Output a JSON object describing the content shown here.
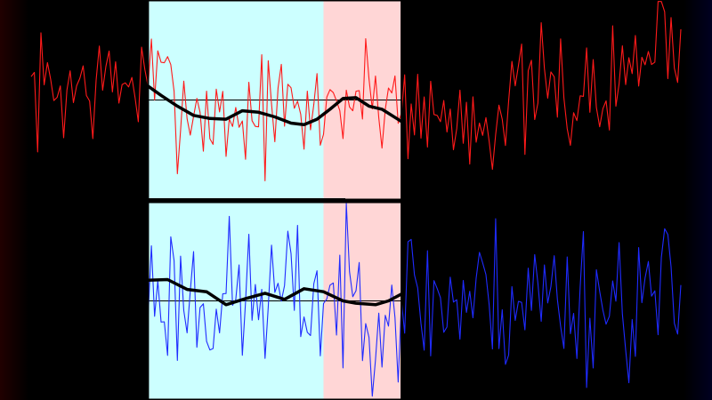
{
  "colors": {
    "background": "#000000",
    "top_series": "#ff1a1a",
    "bottom_series": "#1f2bff",
    "smooth": "#000000",
    "baseline": "#000000",
    "band_cyan": "#ccffff",
    "band_pink": "#ffd6d6",
    "panel_border": "#000000"
  },
  "chart_data": [
    {
      "type": "line",
      "panel": "top",
      "xlim": [
        0,
        200
      ],
      "ylim": [
        -1.3,
        1.3
      ],
      "baseline": 0,
      "highlight_bands": [
        {
          "x0": 36,
          "x1": 90,
          "color": "cyan"
        },
        {
          "x0": 90,
          "x1": 114,
          "color": "pink"
        }
      ],
      "series": [
        {
          "role": "raw",
          "seed": 7,
          "noise_amplitude": 0.55,
          "trend_x": [
            0,
            36,
            40,
            50,
            60,
            68,
            76,
            84,
            90,
            100,
            110,
            114,
            125,
            140,
            160,
            175,
            185,
            200
          ],
          "trend_y": [
            0.1,
            0.25,
            0.15,
            -0.1,
            -0.25,
            -0.18,
            -0.1,
            -0.28,
            -0.05,
            0.05,
            0.05,
            0.0,
            -0.25,
            -0.2,
            0.15,
            -0.02,
            0.45,
            1.05
          ]
        },
        {
          "role": "smoothed",
          "x": [
            36,
            40,
            45,
            50,
            55,
            60,
            65,
            70,
            75,
            80,
            84,
            88,
            92,
            96,
            100,
            104,
            108,
            114
          ],
          "y": [
            0.18,
            0.06,
            -0.08,
            -0.2,
            -0.24,
            -0.25,
            -0.14,
            -0.16,
            -0.22,
            -0.3,
            -0.32,
            -0.25,
            -0.12,
            0.02,
            0.03,
            -0.08,
            -0.12,
            -0.28
          ]
        }
      ]
    },
    {
      "type": "line",
      "panel": "bottom",
      "xlim": [
        0,
        200
      ],
      "ylim": [
        -1.3,
        1.3
      ],
      "baseline": 0,
      "highlight_bands": [
        {
          "x0": 36,
          "x1": 90,
          "color": "cyan"
        },
        {
          "x0": 90,
          "x1": 114,
          "color": "pink"
        }
      ],
      "series": [
        {
          "role": "raw",
          "seed": 23,
          "noise_amplitude": 0.75,
          "trend_x": [
            36,
            60,
            90,
            114,
            150,
            200
          ],
          "trend_y": [
            0.15,
            0.0,
            0.05,
            0.0,
            0.05,
            0.0
          ]
        },
        {
          "role": "smoothed",
          "x": [
            36,
            42,
            48,
            54,
            60,
            66,
            72,
            78,
            84,
            90,
            96,
            100,
            106,
            110,
            114
          ],
          "y": [
            0.27,
            0.28,
            0.15,
            0.12,
            -0.05,
            0.03,
            0.1,
            0.02,
            0.16,
            0.12,
            0.0,
            -0.03,
            -0.05,
            0.0,
            0.09
          ]
        }
      ]
    }
  ]
}
